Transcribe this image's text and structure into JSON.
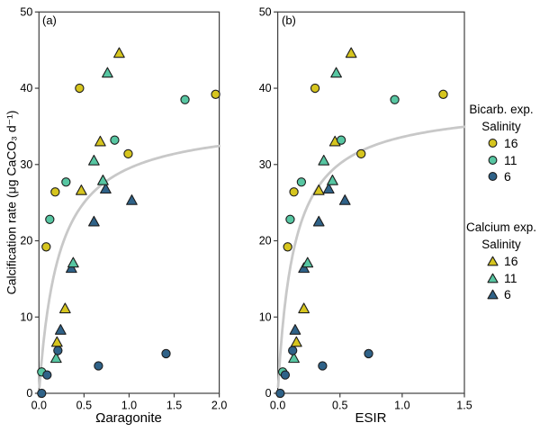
{
  "figure": {
    "panel_a_label": "(a)",
    "panel_b_label": "(b)",
    "y_axis_title": "Calcification rate (μg CaCO₃ d⁻¹)",
    "x_axis_title_a": "Ωaragonite",
    "x_axis_title_b": "ESIR"
  },
  "colors": {
    "salinity_16": "#d6c51e",
    "salinity_11": "#57c6a2",
    "salinity_6": "#2f6288",
    "marker_outline": "#1c1c1c",
    "fit_curve": "#c8c8c8",
    "frame": "#3f3f3f"
  },
  "legend": {
    "bicarb": {
      "title": "Bicarb. exp.",
      "subtitle": "Salinity",
      "marker": "circle",
      "items": [
        {
          "label": "16",
          "color": "#d6c51e"
        },
        {
          "label": "11",
          "color": "#57c6a2"
        },
        {
          "label": "6",
          "color": "#2f6288"
        }
      ]
    },
    "calcium": {
      "title": "Calcium exp.",
      "subtitle": "Salinity",
      "marker": "triangle",
      "items": [
        {
          "label": "16",
          "color": "#d6c51e"
        },
        {
          "label": "11",
          "color": "#57c6a2"
        },
        {
          "label": "6",
          "color": "#2f6288"
        }
      ]
    }
  },
  "chart_data": [
    {
      "type": "scatter",
      "panel": "a",
      "xlabel": "Ωaragonite",
      "ylabel": "Calcification rate (μg CaCO₃ d⁻¹)",
      "xlim": [
        0,
        2.0
      ],
      "ylim": [
        0,
        50
      ],
      "x_ticks": [
        0,
        0.5,
        1.0,
        1.5,
        2.0
      ],
      "x_tick_labels": [
        "0.0",
        "0.5",
        "1.0",
        "1.5",
        "2.0"
      ],
      "y_ticks": [
        0,
        10,
        20,
        30,
        40,
        50
      ],
      "y_tick_labels": [
        "0",
        "10",
        "20",
        "30",
        "40",
        "50"
      ],
      "grid": false,
      "fit_curve": {
        "type": "michaelis_menten",
        "ymax": 36,
        "K": 0.22,
        "x_start": 0.005,
        "x_end": 2.0
      },
      "series": [
        {
          "name": "Calcium exp. Salinity 16",
          "marker": "triangle",
          "color": "#d6c51e",
          "points": [
            [
              0.89,
              44.6
            ],
            [
              0.68,
              33.0
            ],
            [
              0.47,
              26.6
            ],
            [
              0.29,
              11.1
            ],
            [
              0.2,
              6.7
            ]
          ]
        },
        {
          "name": "Calcium exp. Salinity 6",
          "marker": "triangle",
          "color": "#2f6288",
          "points": [
            [
              0.74,
              26.8
            ],
            [
              1.03,
              25.3
            ],
            [
              0.61,
              22.5
            ],
            [
              0.36,
              16.4
            ],
            [
              0.24,
              8.3
            ]
          ]
        },
        {
          "name": "Calcium exp. Salinity 11",
          "marker": "triangle",
          "color": "#57c6a2",
          "points": [
            [
              0.76,
              42.0
            ],
            [
              0.61,
              30.5
            ],
            [
              0.71,
              27.9
            ],
            [
              0.38,
              17.1
            ],
            [
              0.19,
              4.6
            ]
          ]
        },
        {
          "name": "Bicarb. exp. Salinity 16",
          "marker": "circle",
          "color": "#d6c51e",
          "points": [
            [
              0.45,
              40.0
            ],
            [
              1.96,
              39.2
            ],
            [
              0.99,
              31.4
            ],
            [
              0.18,
              26.4
            ],
            [
              0.08,
              19.2
            ]
          ]
        },
        {
          "name": "Bicarb. exp. Salinity 11",
          "marker": "circle",
          "color": "#57c6a2",
          "points": [
            [
              1.62,
              38.5
            ],
            [
              0.84,
              33.2
            ],
            [
              0.3,
              27.7
            ],
            [
              0.12,
              22.8
            ],
            [
              0.03,
              2.8
            ]
          ]
        },
        {
          "name": "Bicarb. exp. Salinity 6",
          "marker": "circle",
          "color": "#2f6288",
          "points": [
            [
              0.21,
              5.6
            ],
            [
              1.41,
              5.2
            ],
            [
              0.66,
              3.6
            ],
            [
              0.09,
              2.4
            ],
            [
              0.03,
              0.0
            ]
          ]
        }
      ]
    },
    {
      "type": "scatter",
      "panel": "b",
      "xlabel": "ESIR",
      "ylabel": "Calcification rate (μg CaCO₃ d⁻¹)",
      "xlim": [
        0,
        1.5
      ],
      "ylim": [
        0,
        50
      ],
      "x_ticks": [
        0,
        0.5,
        1.0,
        1.5
      ],
      "x_tick_labels": [
        "0.0",
        "0.5",
        "1.0",
        "1.5"
      ],
      "y_ticks": [
        0,
        10,
        20,
        30,
        40,
        50
      ],
      "y_tick_labels": [
        "0",
        "10",
        "20",
        "30",
        "40",
        "50"
      ],
      "grid": false,
      "fit_curve": {
        "type": "michaelis_menten",
        "ymax": 38,
        "K": 0.131,
        "x_start": 0.003,
        "x_end": 1.5
      },
      "series": [
        {
          "name": "Calcium exp. Salinity 16",
          "marker": "triangle",
          "color": "#d6c51e",
          "points": [
            [
              0.59,
              44.6
            ],
            [
              0.46,
              33.0
            ],
            [
              0.33,
              26.6
            ],
            [
              0.21,
              11.1
            ],
            [
              0.15,
              6.7
            ]
          ]
        },
        {
          "name": "Calcium exp. Salinity 6",
          "marker": "triangle",
          "color": "#2f6288",
          "points": [
            [
              0.41,
              26.8
            ],
            [
              0.54,
              25.3
            ],
            [
              0.33,
              22.5
            ],
            [
              0.21,
              16.4
            ],
            [
              0.14,
              8.3
            ]
          ]
        },
        {
          "name": "Calcium exp. Salinity 11",
          "marker": "triangle",
          "color": "#57c6a2",
          "points": [
            [
              0.47,
              42.0
            ],
            [
              0.37,
              30.5
            ],
            [
              0.44,
              27.9
            ],
            [
              0.24,
              17.1
            ],
            [
              0.13,
              4.6
            ]
          ]
        },
        {
          "name": "Bicarb. exp. Salinity 16",
          "marker": "circle",
          "color": "#d6c51e",
          "points": [
            [
              0.3,
              40.0
            ],
            [
              1.33,
              39.2
            ],
            [
              0.67,
              31.4
            ],
            [
              0.13,
              26.4
            ],
            [
              0.08,
              19.2
            ]
          ]
        },
        {
          "name": "Bicarb. exp. Salinity 11",
          "marker": "circle",
          "color": "#57c6a2",
          "points": [
            [
              0.94,
              38.5
            ],
            [
              0.51,
              33.2
            ],
            [
              0.19,
              27.7
            ],
            [
              0.1,
              22.8
            ],
            [
              0.04,
              2.8
            ]
          ]
        },
        {
          "name": "Bicarb. exp. Salinity 6",
          "marker": "circle",
          "color": "#2f6288",
          "points": [
            [
              0.12,
              5.6
            ],
            [
              0.73,
              5.2
            ],
            [
              0.36,
              3.6
            ],
            [
              0.06,
              2.4
            ],
            [
              0.02,
              0.0
            ]
          ]
        }
      ]
    }
  ]
}
